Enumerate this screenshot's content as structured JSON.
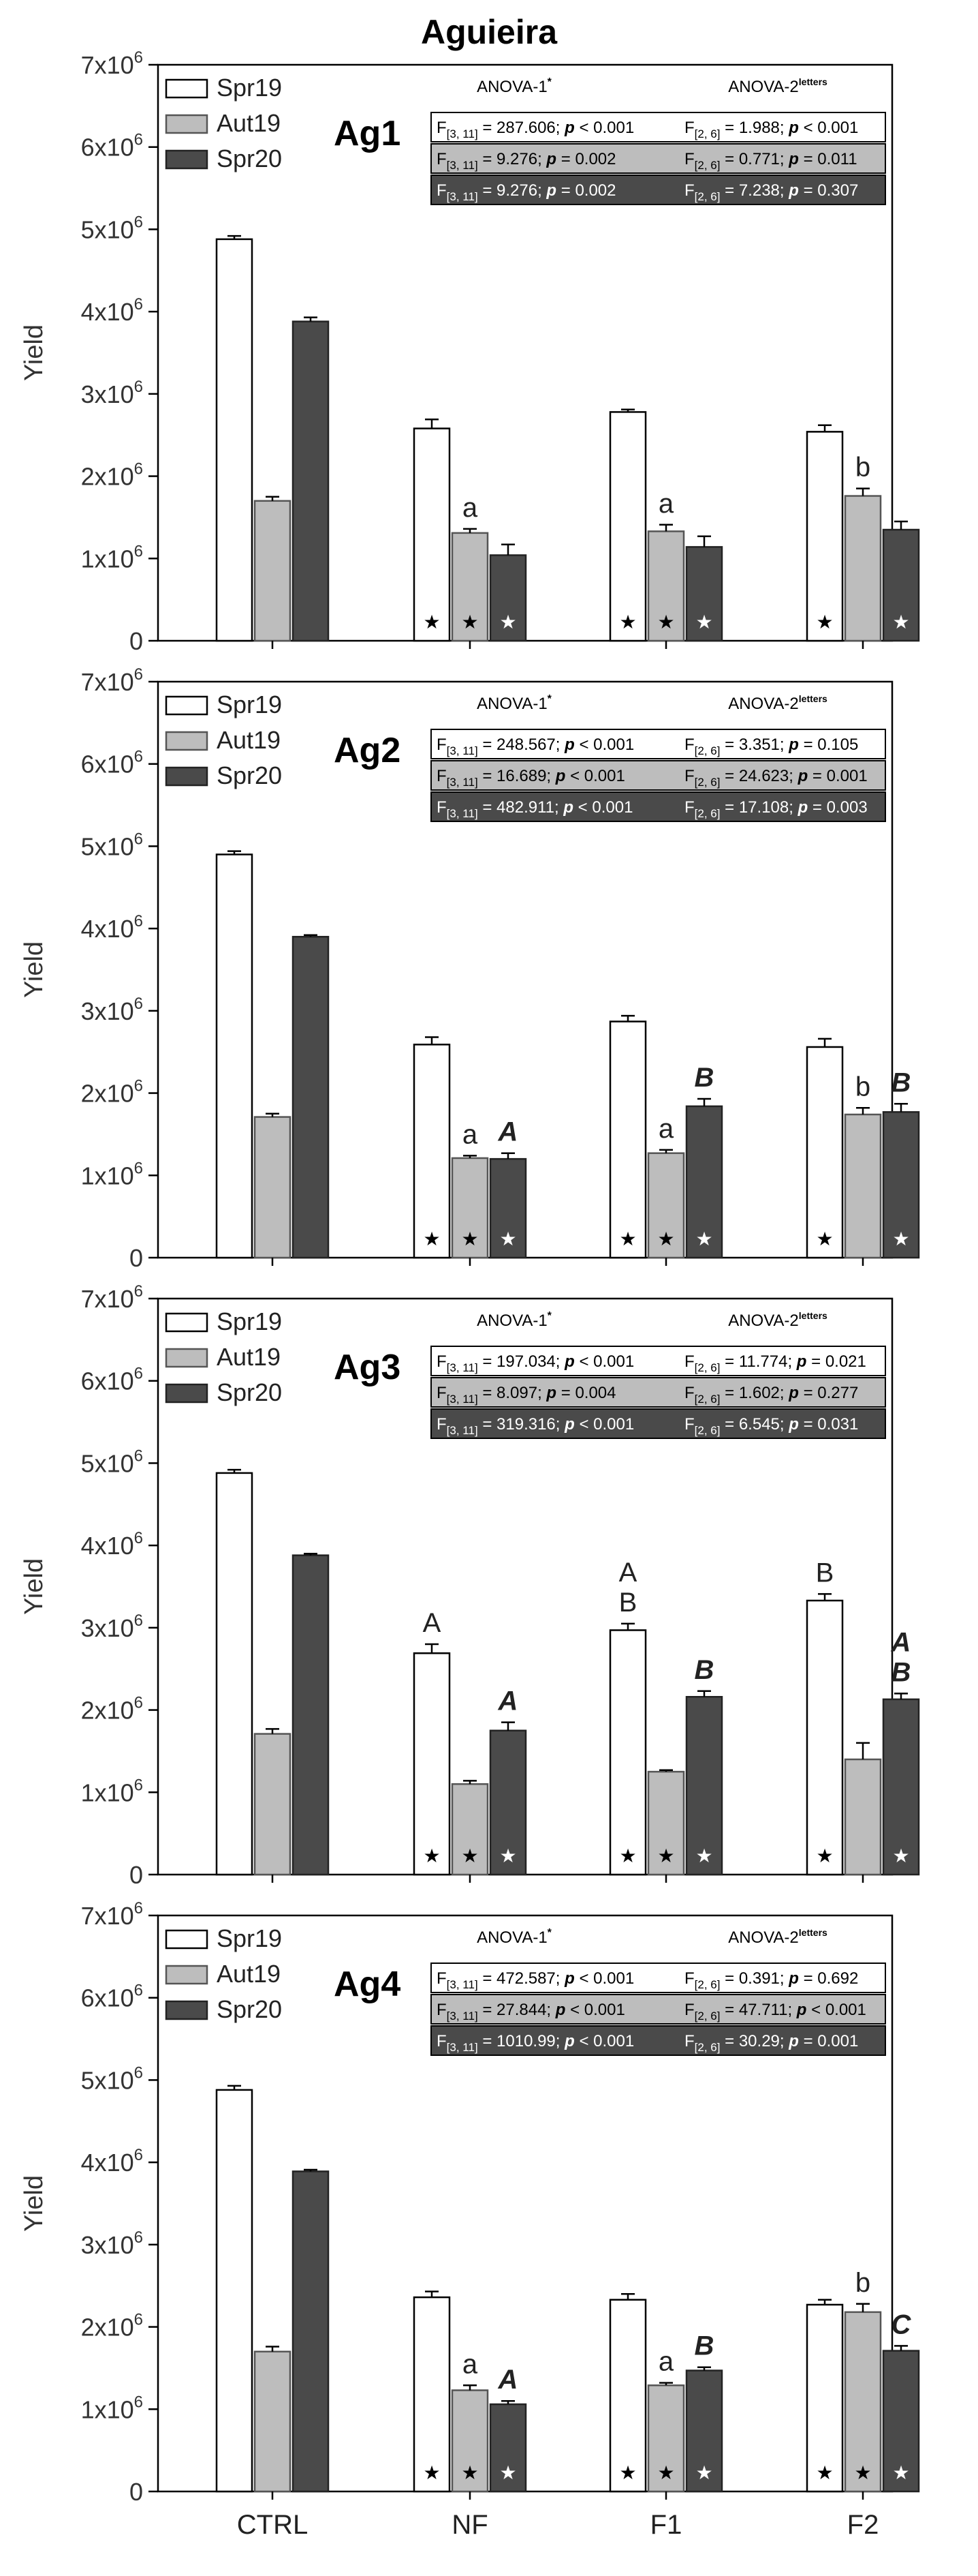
{
  "title": "Aguieira",
  "ylabel": "Yield",
  "categories": [
    "CTRL",
    "NF",
    "F1",
    "F2"
  ],
  "legend": [
    "Spr19",
    "Aut19",
    "Spr20"
  ],
  "series_colors": [
    "#ffffff",
    "#bdbdbd",
    "#4a4a4a"
  ],
  "ylim": [
    0,
    7000000
  ],
  "yticks": [
    {
      "value": 0,
      "base": "0",
      "exp": ""
    },
    {
      "value": 1000000,
      "base": "1x10",
      "exp": "6"
    },
    {
      "value": 2000000,
      "base": "2x10",
      "exp": "6"
    },
    {
      "value": 3000000,
      "base": "3x10",
      "exp": "6"
    },
    {
      "value": 4000000,
      "base": "4x10",
      "exp": "6"
    },
    {
      "value": 5000000,
      "base": "5x10",
      "exp": "6"
    },
    {
      "value": 6000000,
      "base": "6x10",
      "exp": "6"
    },
    {
      "value": 7000000,
      "base": "7x10",
      "exp": "6"
    }
  ],
  "anova_header_1": "ANOVA-1",
  "anova_header_1_sup": "*",
  "anova_header_2": "ANOVA-2",
  "anova_header_2_sup": "letters",
  "chart_data": [
    {
      "type": "bar",
      "panel": "Ag1",
      "categories": [
        "CTRL",
        "NF",
        "F1",
        "F2"
      ],
      "series": [
        {
          "name": "Spr19",
          "values": [
            4880000,
            2580000,
            2780000,
            2540000
          ],
          "errors": [
            40000,
            110000,
            30000,
            80000
          ],
          "stars": [
            false,
            true,
            true,
            true
          ],
          "letters": [
            "",
            "",
            "",
            ""
          ]
        },
        {
          "name": "Aut19",
          "values": [
            1700000,
            1310000,
            1330000,
            1760000
          ],
          "errors": [
            50000,
            50000,
            80000,
            90000
          ],
          "stars": [
            false,
            true,
            true,
            false
          ],
          "letters": [
            "",
            "a",
            "a",
            "b"
          ]
        },
        {
          "name": "Spr20",
          "values": [
            3880000,
            1040000,
            1140000,
            1350000
          ],
          "errors": [
            50000,
            130000,
            130000,
            100000
          ],
          "stars": [
            false,
            true,
            true,
            true
          ],
          "letters": [
            "",
            "",
            "",
            ""
          ]
        }
      ],
      "stats": [
        {
          "a1_sub": "[3, 11]",
          "a1_f": "287.606",
          "a1_p": "< 0.001",
          "a2_sub": "[2, 6]",
          "a2_f": "1.988",
          "a2_p": "< 0.001"
        },
        {
          "a1_sub": "[3, 11]",
          "a1_f": "9.276",
          "a1_p": "= 0.002",
          "a2_sub": "[2, 6]",
          "a2_f": "0.771",
          "a2_p": "= 0.011"
        },
        {
          "a1_sub": "[3, 11]",
          "a1_f": "9.276",
          "a1_p": "= 0.002",
          "a2_sub": "[2, 6]",
          "a2_f": "7.238",
          "a2_p": "= 0.307"
        }
      ]
    },
    {
      "type": "bar",
      "panel": "Ag2",
      "categories": [
        "CTRL",
        "NF",
        "F1",
        "F2"
      ],
      "series": [
        {
          "name": "Spr19",
          "values": [
            4900000,
            2590000,
            2870000,
            2560000
          ],
          "errors": [
            40000,
            90000,
            70000,
            100000
          ],
          "stars": [
            false,
            true,
            true,
            true
          ],
          "letters": [
            "",
            "",
            "",
            ""
          ]
        },
        {
          "name": "Aut19",
          "values": [
            1710000,
            1210000,
            1270000,
            1740000
          ],
          "errors": [
            40000,
            30000,
            40000,
            80000
          ],
          "stars": [
            false,
            true,
            true,
            false
          ],
          "letters": [
            "",
            "a",
            "a",
            "b"
          ]
        },
        {
          "name": "Spr20",
          "values": [
            3900000,
            1200000,
            1840000,
            1770000
          ],
          "errors": [
            20000,
            70000,
            90000,
            100000
          ],
          "stars": [
            false,
            true,
            true,
            true
          ],
          "letters": [
            "",
            "A",
            "B",
            "B"
          ]
        }
      ],
      "stats": [
        {
          "a1_sub": "[3, 11]",
          "a1_f": "248.567",
          "a1_p": "< 0.001",
          "a2_sub": "[2, 6]",
          "a2_f": "3.351",
          "a2_p": "= 0.105"
        },
        {
          "a1_sub": "[3, 11]",
          "a1_f": "16.689",
          "a1_p": "< 0.001",
          "a2_sub": "[2, 6]",
          "a2_f": "24.623",
          "a2_p": "= 0.001"
        },
        {
          "a1_sub": "[3, 11]",
          "a1_f": "482.911",
          "a1_p": "< 0.001",
          "a2_sub": "[2, 6]",
          "a2_f": "17.108",
          "a2_p": "= 0.003"
        }
      ]
    },
    {
      "type": "bar",
      "panel": "Ag3",
      "categories": [
        "CTRL",
        "NF",
        "F1",
        "F2"
      ],
      "series": [
        {
          "name": "Spr19",
          "values": [
            4880000,
            2690000,
            2970000,
            3330000
          ],
          "errors": [
            40000,
            110000,
            80000,
            80000
          ],
          "stars": [
            false,
            true,
            true,
            true
          ],
          "letters": [
            "",
            "A",
            "A B",
            "B"
          ]
        },
        {
          "name": "Aut19",
          "values": [
            1710000,
            1100000,
            1250000,
            1400000
          ],
          "errors": [
            60000,
            40000,
            20000,
            200000
          ],
          "stars": [
            false,
            true,
            true,
            false
          ],
          "letters": [
            "",
            "",
            "",
            ""
          ]
        },
        {
          "name": "Spr20",
          "values": [
            3880000,
            1750000,
            2160000,
            2130000
          ],
          "errors": [
            20000,
            100000,
            70000,
            70000
          ],
          "stars": [
            false,
            true,
            true,
            true
          ],
          "letters": [
            "",
            "A",
            "B",
            "A B"
          ]
        }
      ],
      "stats": [
        {
          "a1_sub": "[3, 11]",
          "a1_f": "197.034",
          "a1_p": "< 0.001",
          "a2_sub": "[2, 6]",
          "a2_f": "11.774",
          "a2_p": "= 0.021"
        },
        {
          "a1_sub": "[3, 11]",
          "a1_f": "8.097",
          "a1_p": "= 0.004",
          "a2_sub": "[2, 6]",
          "a2_f": "1.602",
          "a2_p": "= 0.277"
        },
        {
          "a1_sub": "[3, 11]",
          "a1_f": "319.316",
          "a1_p": "< 0.001",
          "a2_sub": "[2, 6]",
          "a2_f": "6.545",
          "a2_p": "= 0.031"
        }
      ]
    },
    {
      "type": "bar",
      "panel": "Ag4",
      "categories": [
        "CTRL",
        "NF",
        "F1",
        "F2"
      ],
      "series": [
        {
          "name": "Spr19",
          "values": [
            4880000,
            2360000,
            2330000,
            2270000
          ],
          "errors": [
            50000,
            70000,
            70000,
            60000
          ],
          "stars": [
            false,
            true,
            true,
            true
          ],
          "letters": [
            "",
            "",
            "",
            ""
          ]
        },
        {
          "name": "Aut19",
          "values": [
            1700000,
            1230000,
            1290000,
            2180000
          ],
          "errors": [
            60000,
            60000,
            30000,
            100000
          ],
          "stars": [
            false,
            true,
            true,
            true
          ],
          "letters": [
            "",
            "a",
            "a",
            "b"
          ]
        },
        {
          "name": "Spr20",
          "values": [
            3890000,
            1060000,
            1470000,
            1710000
          ],
          "errors": [
            20000,
            40000,
            40000,
            60000
          ],
          "stars": [
            false,
            true,
            true,
            true
          ],
          "letters": [
            "",
            "A",
            "B",
            "C"
          ]
        }
      ],
      "stats": [
        {
          "a1_sub": "[3, 11]",
          "a1_f": "472.587",
          "a1_p": "< 0.001",
          "a2_sub": "[2, 6]",
          "a2_f": "0.391",
          "a2_p": "= 0.692"
        },
        {
          "a1_sub": "[3, 11]",
          "a1_f": "27.844",
          "a1_p": "< 0.001",
          "a2_sub": "[2, 6]",
          "a2_f": "47.711",
          "a2_p": "< 0.001"
        },
        {
          "a1_sub": "[3, 11]",
          "a1_f": "1010.99",
          "a1_p": "< 0.001",
          "a2_sub": "[2, 6]",
          "a2_f": "30.29",
          "a2_p": "= 0.001"
        }
      ]
    }
  ]
}
